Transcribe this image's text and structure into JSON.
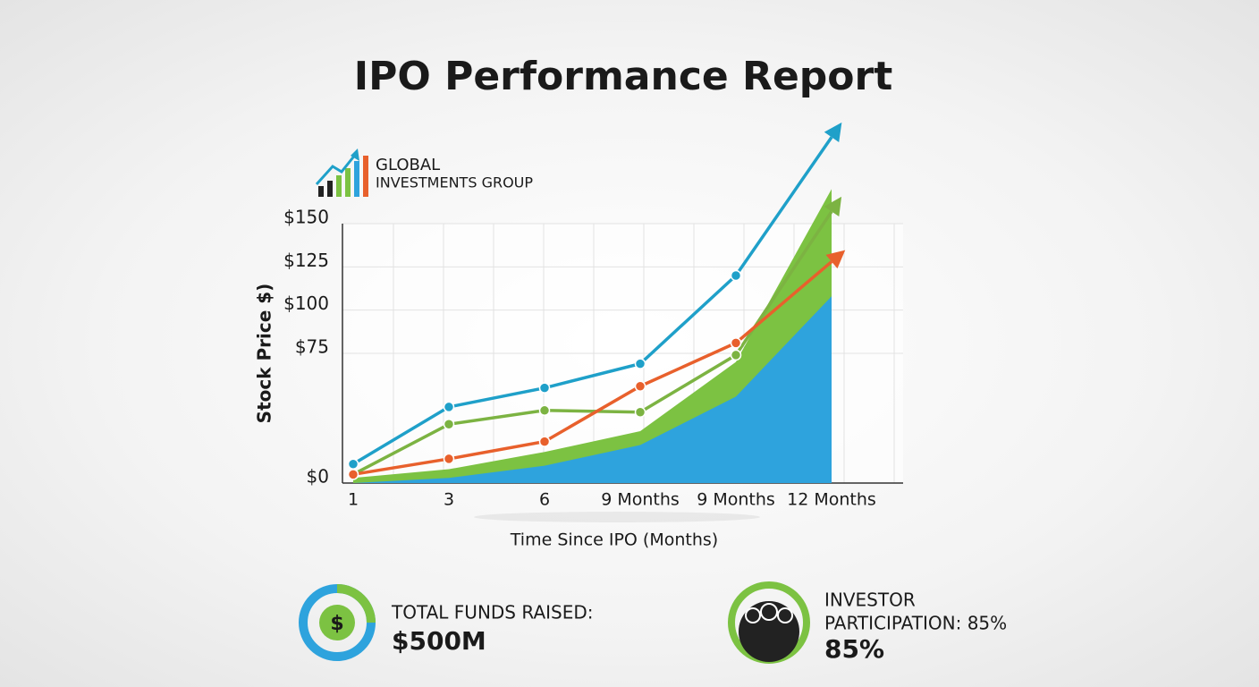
{
  "title": "IPO Performance Report",
  "logo": {
    "line1": "GLOBAL",
    "line2": "INVESTMENTS GROUP"
  },
  "chart_data": {
    "type": "line",
    "ylabel": "Stock Price $)",
    "xlabel": "Time Since IPO (Months)",
    "categories": [
      "1",
      "3",
      "6",
      "9 Months",
      "9 Months",
      "12 Months"
    ],
    "ylim": [
      0,
      150
    ],
    "yticks": [
      {
        "value": 0,
        "label": "$0"
      },
      {
        "value": 75,
        "label": "$75"
      },
      {
        "value": 100,
        "label": "$100"
      },
      {
        "value": 125,
        "label": "$125"
      },
      {
        "value": 150,
        "label": "$150"
      }
    ],
    "grid": true,
    "series": [
      {
        "style": "area",
        "color": "#7cc242",
        "values": [
          3,
          8,
          18,
          30,
          70,
          170
        ]
      },
      {
        "style": "area",
        "color": "#2ea3dd",
        "values": [
          0,
          3,
          10,
          22,
          50,
          108
        ]
      },
      {
        "style": "line",
        "color": "#7cb342",
        "values": [
          5,
          34,
          42,
          41,
          74,
          157
        ]
      },
      {
        "style": "line",
        "color": "#e8602c",
        "values": [
          5,
          14,
          24,
          56,
          81,
          128
        ]
      },
      {
        "style": "line",
        "color": "#1fa0c9",
        "values": [
          11,
          44,
          55,
          69,
          120,
          200
        ]
      }
    ]
  },
  "stats": [
    {
      "label": "TOTAL FUNDS RAISED:",
      "value": "$500M"
    },
    {
      "label1": "INVESTOR",
      "label2": "PARTICIPATION: 85%",
      "value": "85%"
    }
  ]
}
